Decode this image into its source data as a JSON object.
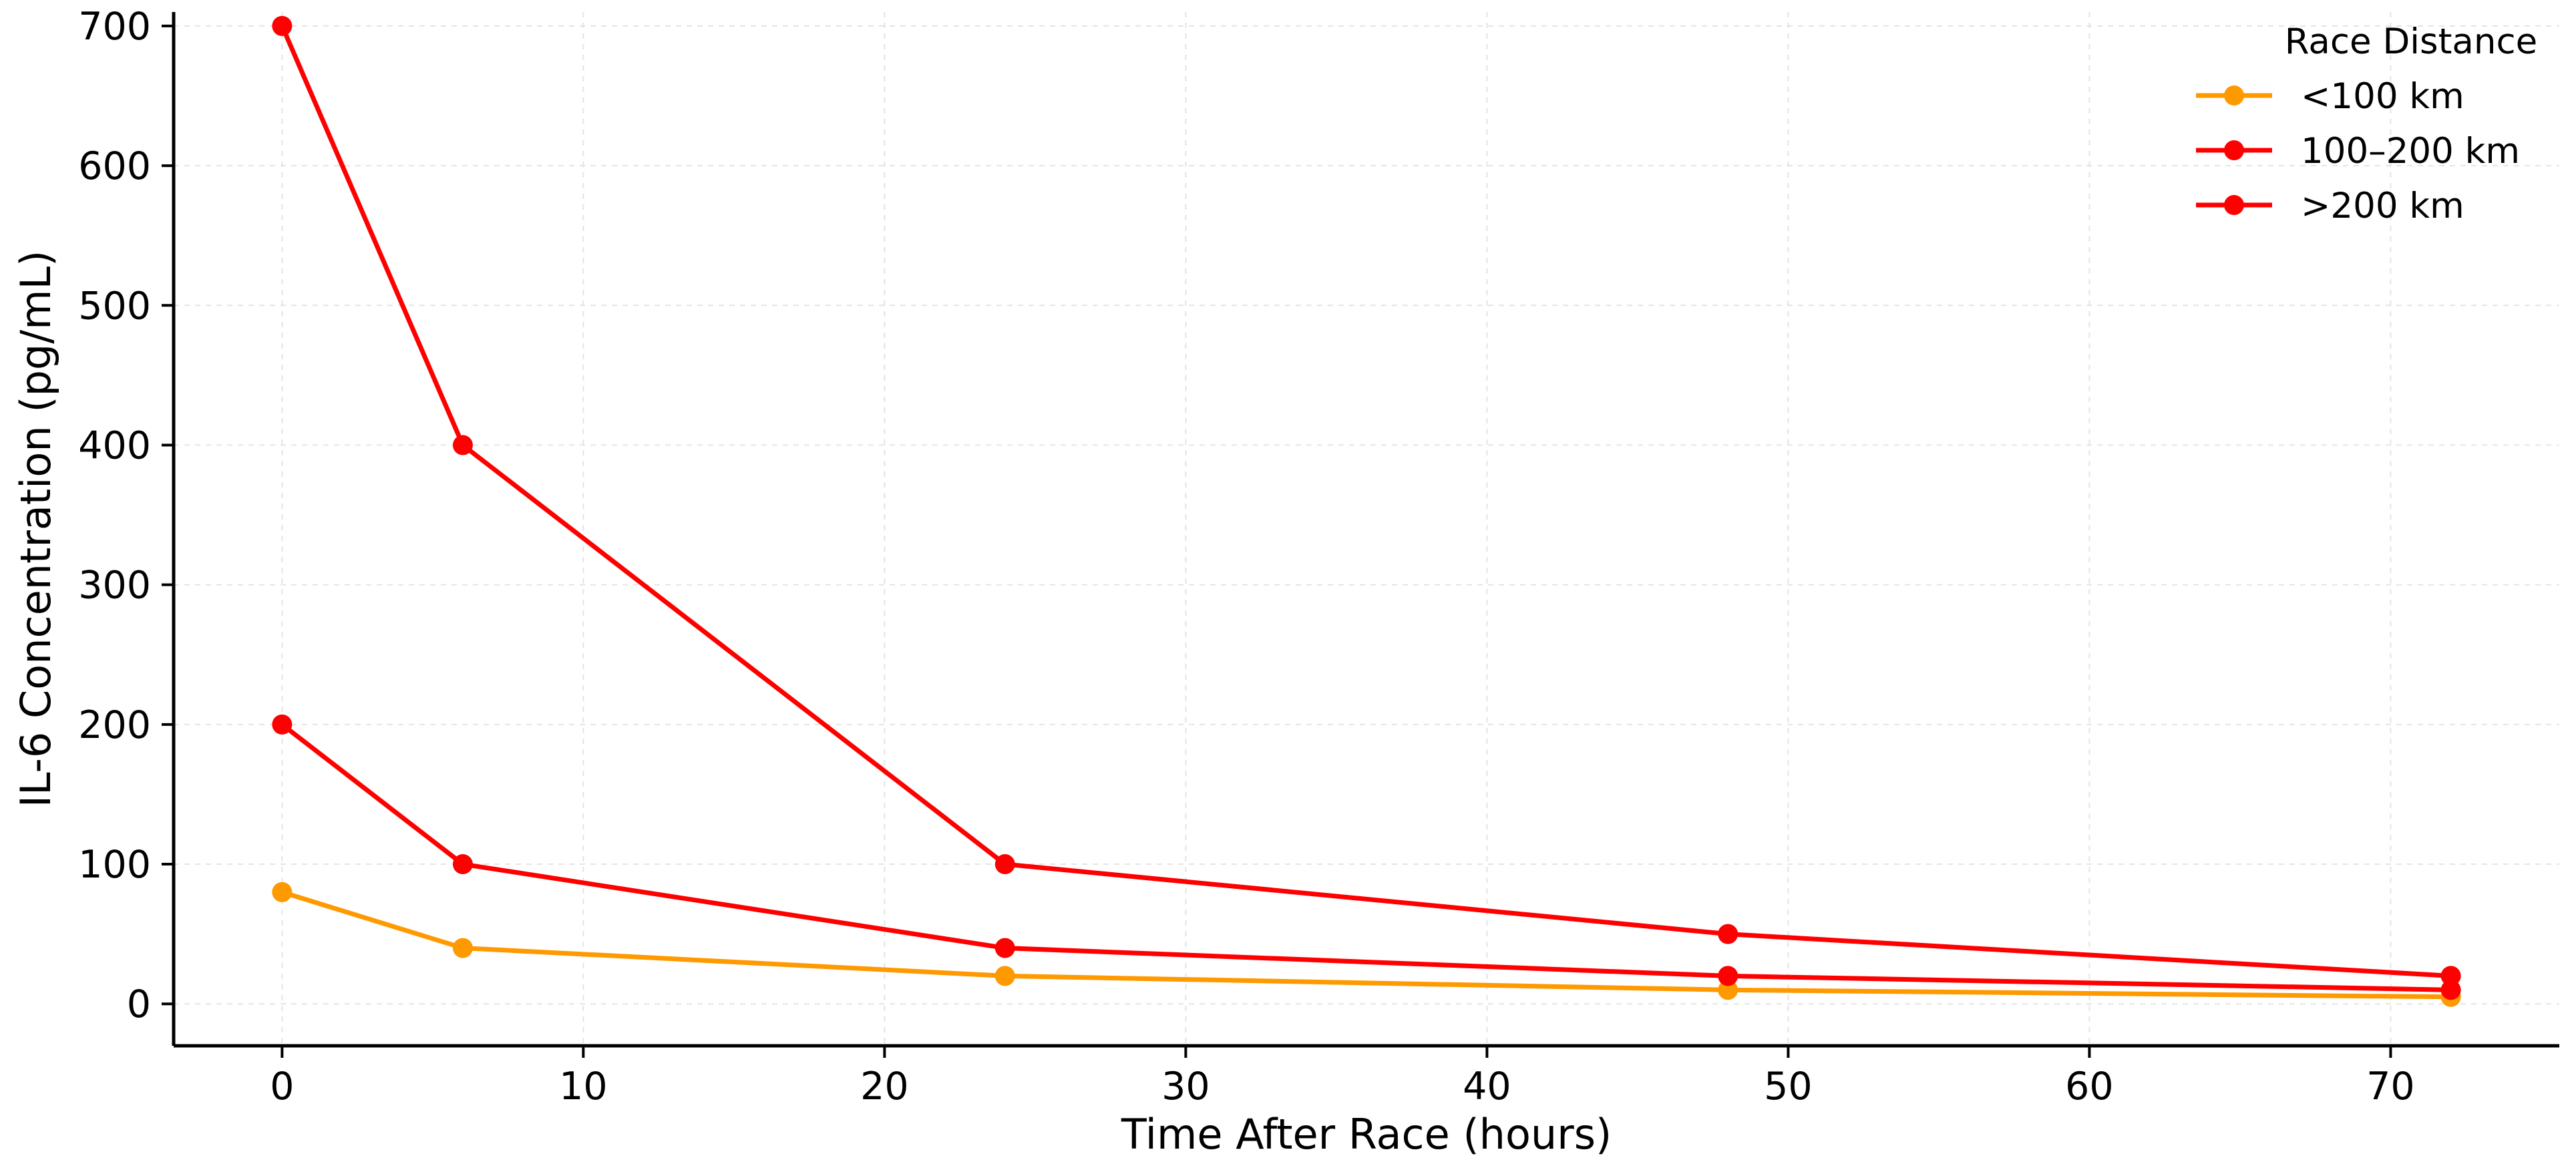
{
  "chart_data": {
    "type": "line",
    "xlabel": "Time After Race (hours)",
    "ylabel": "IL-6 Concentration (pg/mL)",
    "xlim": [
      -3.6,
      75.6
    ],
    "ylim": [
      -30,
      710
    ],
    "x_ticks": [
      0,
      10,
      20,
      30,
      40,
      50,
      60,
      70
    ],
    "y_ticks": [
      0,
      100,
      200,
      300,
      400,
      500,
      600,
      700
    ],
    "grid": true,
    "legend": {
      "title": "Race Distance",
      "placement": "top-right"
    },
    "x": [
      0,
      6,
      24,
      48,
      72
    ],
    "series": [
      {
        "name": "<100 km",
        "color": "#ff9900",
        "values": [
          80,
          40,
          20,
          10,
          5
        ]
      },
      {
        "name": "100–200 km",
        "color": "#ff0000",
        "values": [
          200,
          100,
          40,
          20,
          10
        ]
      },
      {
        "name": ">200 km",
        "color": "#ff0000",
        "values": [
          700,
          400,
          100,
          50,
          20
        ]
      }
    ]
  }
}
